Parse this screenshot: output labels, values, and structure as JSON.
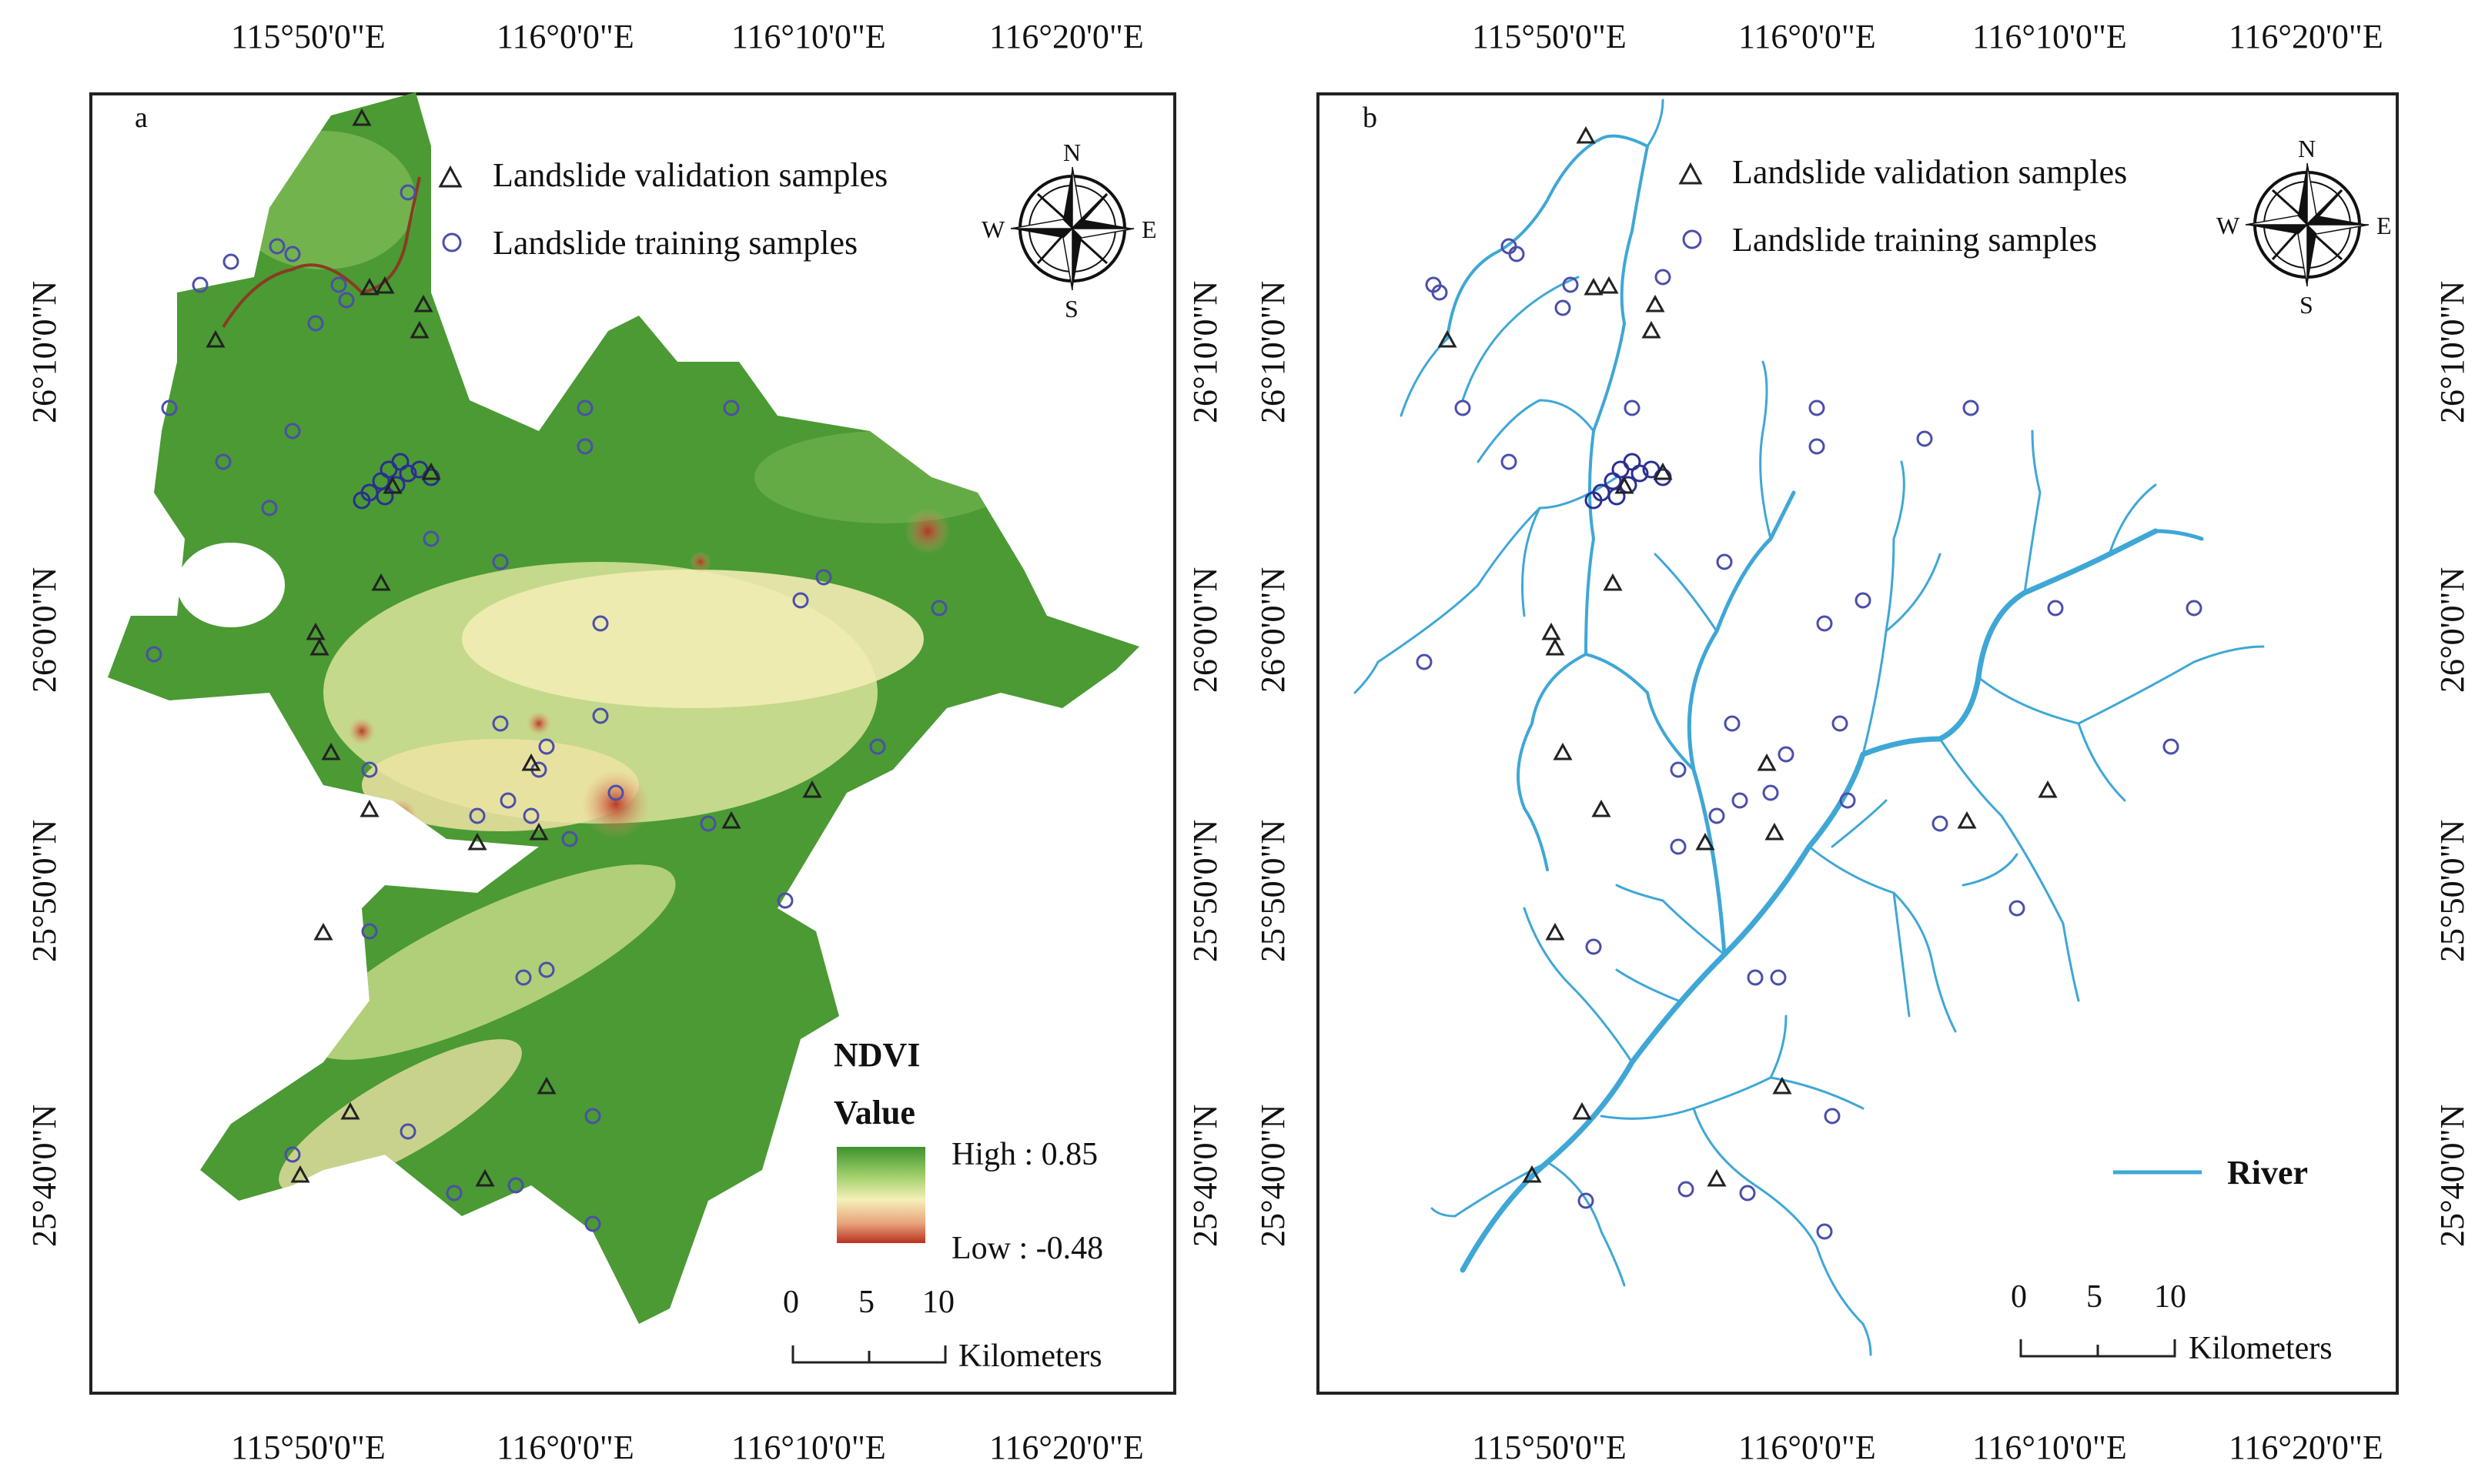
{
  "panels": [
    {
      "letter": "a",
      "legend": {
        "validation": "Landslide validation samples",
        "training": "Landslide training samples"
      },
      "compass": {
        "n": "N",
        "s": "S",
        "w": "W",
        "e": "E"
      },
      "ndvi": {
        "title": "NDVI",
        "value_label": "Value",
        "high": "High : 0.85",
        "low": "Low : -0.48"
      },
      "scale": {
        "ticks": [
          "0",
          "5",
          "10"
        ],
        "unit": "Kilometers"
      }
    },
    {
      "letter": "b",
      "legend": {
        "validation": "Landslide validation samples",
        "training": "Landslide training samples"
      },
      "compass": {
        "n": "N",
        "s": "S",
        "w": "W",
        "e": "E"
      },
      "river_label": "River",
      "scale": {
        "ticks": [
          "0",
          "5",
          "10"
        ],
        "unit": "Kilometers"
      }
    }
  ],
  "longitude_labels": [
    "115°50'0\"E",
    "116°0'0\"E",
    "116°10'0\"E",
    "116°20'0\"E"
  ],
  "latitude_labels": [
    "26°10'0\"N",
    "26°0'0\"N",
    "25°50'0\"N",
    "25°40'0\"N"
  ],
  "colors": {
    "ndvi_high": "#3a8f2b",
    "ndvi_mid": "#f4eeb0",
    "ndvi_low": "#c0392b",
    "river": "#3fa7d6",
    "training_marker": "#4b4fa8",
    "validation_marker": "#222222"
  }
}
